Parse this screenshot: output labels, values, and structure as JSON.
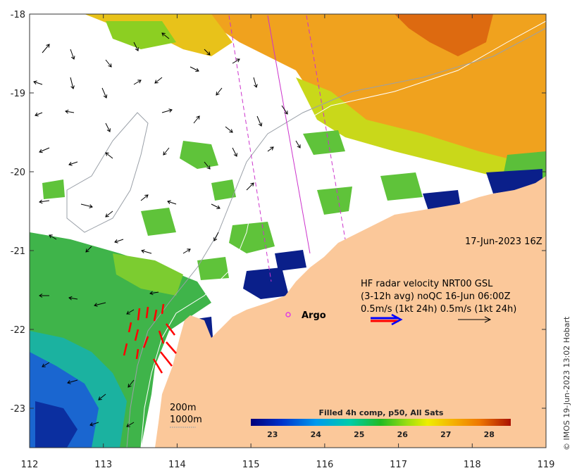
{
  "map": {
    "x_ticks": [
      "112",
      "113",
      "114",
      "115",
      "116",
      "117",
      "118",
      "119"
    ],
    "y_ticks": [
      "-18",
      "-19",
      "-20",
      "-21",
      "-22",
      "-23"
    ],
    "lon_range": [
      112,
      119
    ],
    "lat_range": [
      -18,
      -23.5
    ]
  },
  "annotations": {
    "timestamp": "17-Jun-2023 16Z",
    "radar_line1": "HF radar velocity  NRT00 GSL",
    "radar_line2": "(3-12h avg) noQC 16-Jun 06:00Z",
    "radar_line3": "0.5m/s (1kt 24h)   0.5m/s (1kt 24h)",
    "argo_label": "Argo",
    "contour_200": "200m",
    "contour_1000": "1000m"
  },
  "colorbar": {
    "title": "Filled 4h comp, p50, All Sats",
    "ticks": [
      "23",
      "24",
      "25",
      "26",
      "27",
      "28"
    ],
    "range": [
      22.5,
      28.5
    ]
  },
  "copyright": "© IMOS 19-Jun-2023 13:02 Hobart",
  "colors": {
    "land": "#fbc89a",
    "cloud": "#ffffff",
    "argo": "#e040e0",
    "radar_red": "#ff0000",
    "radar_blue": "#0000ff",
    "track": "#cc33cc"
  }
}
